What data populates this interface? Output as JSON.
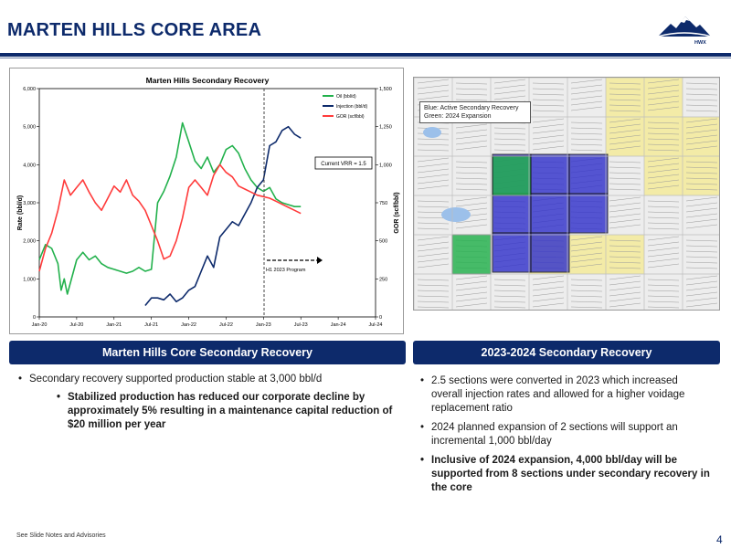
{
  "slide": {
    "title": "MARTEN HILLS CORE AREA",
    "logo_text": "HWX",
    "footnote": "See Slide Notes and Advisories",
    "page_number": "4",
    "colors": {
      "navy": "#0d2a6b",
      "oil": "#22b14c",
      "injection": "#0d2a6b",
      "gor": "#ff3b3b",
      "active": "#3333cc",
      "expansion": "#22b14c"
    }
  },
  "chart_data": {
    "type": "line",
    "title": "Marten Hills Secondary Recovery",
    "xlabel": "",
    "ylabel": "Rate (bbl/d)",
    "y2label": "GOR (scf/bbl)",
    "ylim": [
      0,
      6000
    ],
    "y2lim": [
      0,
      1500
    ],
    "yticks": [
      "0",
      "1,000",
      "2,000",
      "3,000",
      "4,000",
      "5,000",
      "6,000"
    ],
    "y2ticks": [
      "0",
      "250",
      "500",
      "750",
      "1,000",
      "1,250",
      "1,500"
    ],
    "xticks": [
      "Jan-20",
      "Jul-20",
      "Jan-21",
      "Jul-21",
      "Jan-22",
      "Jul-22",
      "Jan-23",
      "Jul-23",
      "Jan-24",
      "Jul-24"
    ],
    "xlim": [
      0,
      54
    ],
    "legend_position": "top-right",
    "grid": false,
    "annotations": {
      "vrr": "Current VRR = 1.5",
      "program": "H1 2023 Program"
    },
    "series": [
      {
        "name": "Oil (bbl/d)",
        "axis": "left",
        "color": "#22b14c",
        "x": [
          0,
          1,
          2,
          3,
          3.5,
          4,
          4.5,
          5,
          6,
          7,
          8,
          9,
          10,
          11,
          12,
          13,
          14,
          15,
          16,
          17,
          18,
          19,
          20,
          21,
          22,
          23,
          24,
          25,
          26,
          27,
          28,
          29,
          30,
          31,
          32,
          33,
          34,
          35,
          36,
          37,
          38,
          39,
          40,
          41,
          42
        ],
        "values": [
          1500,
          1900,
          1800,
          1400,
          700,
          1000,
          600,
          900,
          1500,
          1700,
          1500,
          1600,
          1400,
          1300,
          1250,
          1200,
          1150,
          1200,
          1300,
          1200,
          1250,
          3000,
          3300,
          3700,
          4200,
          5100,
          4600,
          4100,
          3900,
          4200,
          3800,
          4000,
          4400,
          4500,
          4300,
          3900,
          3600,
          3400,
          3300,
          3400,
          3100,
          3000,
          2950,
          2900,
          2900
        ]
      },
      {
        "name": "Injection (bbl/d)",
        "axis": "left",
        "color": "#0d2a6b",
        "x": [
          17,
          18,
          19,
          20,
          21,
          22,
          23,
          24,
          25,
          26,
          27,
          28,
          29,
          30,
          31,
          32,
          33,
          34,
          35,
          36,
          37,
          38,
          39,
          40,
          41,
          42
        ],
        "values": [
          300,
          500,
          500,
          450,
          600,
          400,
          500,
          700,
          800,
          1200,
          1600,
          1300,
          2100,
          2300,
          2500,
          2400,
          2700,
          3000,
          3400,
          3600,
          4500,
          4600,
          4900,
          5000,
          4800,
          4700
        ]
      },
      {
        "name": "GOR (scf/bbl)",
        "axis": "right",
        "color": "#ff3b3b",
        "x": [
          0,
          1,
          2,
          3,
          4,
          5,
          6,
          7,
          8,
          9,
          10,
          11,
          12,
          13,
          14,
          15,
          16,
          17,
          18,
          19,
          20,
          21,
          22,
          23,
          24,
          25,
          26,
          27,
          28,
          29,
          30,
          31,
          32,
          33,
          34,
          35,
          36,
          37,
          38,
          39,
          40,
          41,
          42
        ],
        "values": [
          300,
          450,
          550,
          700,
          900,
          800,
          850,
          900,
          820,
          750,
          700,
          780,
          860,
          820,
          900,
          800,
          760,
          700,
          600,
          500,
          380,
          400,
          500,
          650,
          850,
          900,
          850,
          800,
          930,
          1000,
          950,
          920,
          860,
          840,
          820,
          800,
          790,
          780,
          760,
          740,
          720,
          700,
          680
        ]
      }
    ]
  },
  "map": {
    "legend_line1": "Blue: Active Secondary Recovery",
    "legend_line2": "Green: 2024 Expansion"
  },
  "left_panel": {
    "header": "Marten Hills Core Secondary Recovery",
    "bullet1": "Secondary recovery supported production stable at 3,000 bbl/d",
    "sub_bullet1": "Stabilized production has reduced our corporate decline by approximately 5% resulting in a maintenance capital reduction of $20 million per year"
  },
  "right_panel": {
    "header": "2023-2024 Secondary Recovery",
    "bullet1": "2.5 sections were converted in 2023 which increased overall injection rates and allowed for a higher voidage replacement ratio",
    "bullet2": "2024 planned expansion of 2 sections will support an incremental 1,000  bbl/day",
    "bullet3": "Inclusive of 2024 expansion, 4,000 bbl/day will be supported from 8 sections under secondary recovery in the core"
  }
}
